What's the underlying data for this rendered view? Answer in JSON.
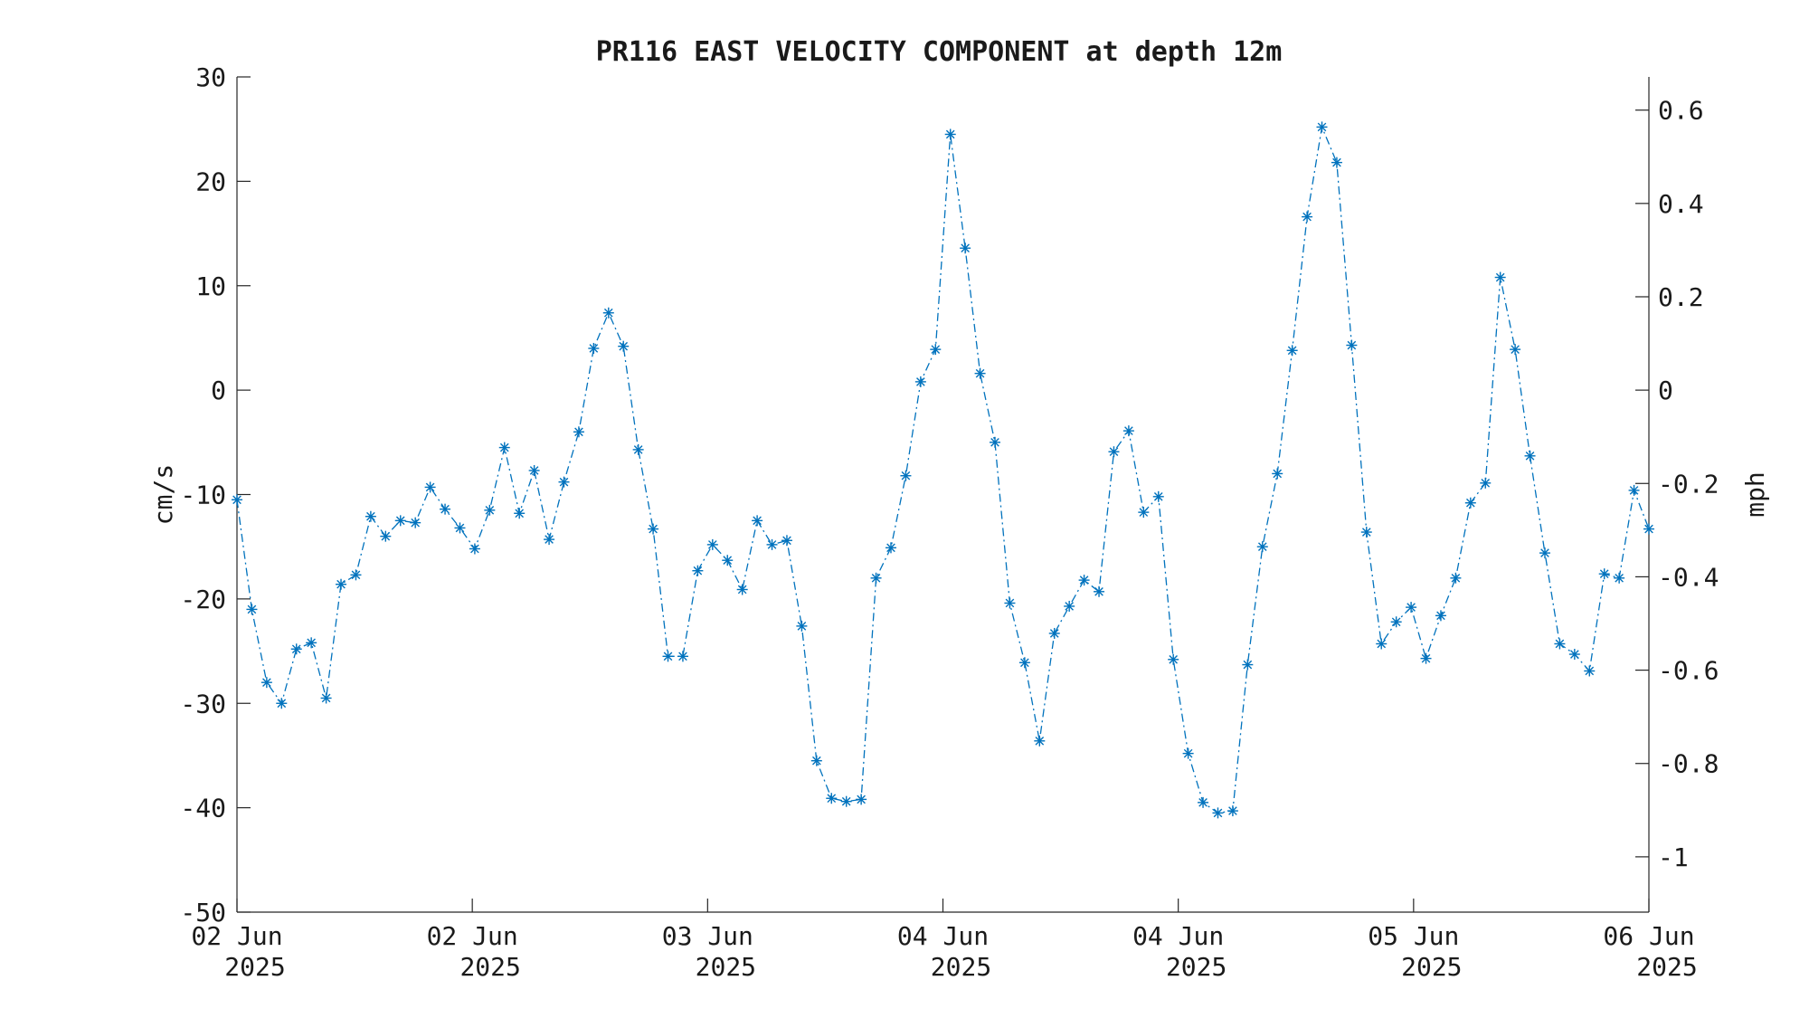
{
  "chart_data": {
    "type": "line",
    "title": "PR116 EAST VELOCITY COMPONENT at depth 12m",
    "ylabel": "cm/s",
    "y2label": "mph",
    "ylim": [
      -50,
      30
    ],
    "y2lim": [
      -1.1185,
      0.6711
    ],
    "yticks": [
      -50,
      -40,
      -30,
      -20,
      -10,
      0,
      10,
      20,
      30
    ],
    "yticks_labels": [
      "-50",
      "-40",
      "-30",
      "-20",
      "-10",
      "0",
      "10",
      "20",
      "30"
    ],
    "y2ticks": [
      -1,
      -0.8,
      -0.6,
      -0.4,
      -0.2,
      0,
      0.2,
      0.4,
      0.6
    ],
    "y2ticks_labels": [
      "-1",
      "-0.8",
      "-0.6",
      "-0.4",
      "-0.2",
      "0",
      "0.2",
      "0.4",
      "0.6"
    ],
    "xticks_labels": [
      [
        "02 Jun",
        "2025"
      ],
      [
        "02 Jun",
        "2025"
      ],
      [
        "03 Jun",
        "2025"
      ],
      [
        "04 Jun",
        "2025"
      ],
      [
        "04 Jun",
        "2025"
      ],
      [
        "05 Jun",
        "2025"
      ],
      [
        "06 Jun",
        "2025"
      ]
    ],
    "grid": false,
    "legend": "none",
    "marker": "asterisk",
    "line_style": "dash-dot",
    "color": "#0072bd",
    "series": [
      {
        "values": [
          -10.5,
          -21,
          -28,
          -30,
          -24.8,
          -24.2,
          -29.5,
          -18.6,
          -17.7,
          -12.1,
          -14,
          -12.5,
          -12.7,
          -9.3,
          -11.4,
          -13.2,
          -15.2,
          -11.5,
          -5.5,
          -11.8,
          -7.7,
          -14.3,
          -8.8,
          -4,
          4,
          7.4,
          4.2,
          -5.7,
          -13.3,
          -25.5,
          -25.5,
          -17.3,
          -14.8,
          -16.3,
          -19.1,
          -12.5,
          -14.8,
          -14.4,
          -22.6,
          -35.5,
          -39.1,
          -39.4,
          -39.2,
          -18,
          -15.1,
          -8.2,
          0.8,
          3.9,
          24.5,
          13.6,
          1.6,
          -5,
          -20.4,
          -26.1,
          -33.6,
          -23.3,
          -20.7,
          -18.2,
          -19.3,
          -5.9,
          -3.9,
          -11.7,
          -10.2,
          -25.8,
          -34.8,
          -39.5,
          -40.5,
          -40.3,
          -26.3,
          -15,
          -8,
          3.8,
          16.6,
          25.2,
          21.8,
          4.3,
          -13.6,
          -24.3,
          -22.2,
          -20.8,
          -25.7,
          -21.6,
          -18,
          -10.8,
          -8.9,
          10.8,
          3.9,
          -6.3,
          -15.6,
          -24.3,
          -25.3,
          -26.9,
          -17.6,
          -18,
          -9.6,
          -13.3
        ]
      }
    ]
  }
}
